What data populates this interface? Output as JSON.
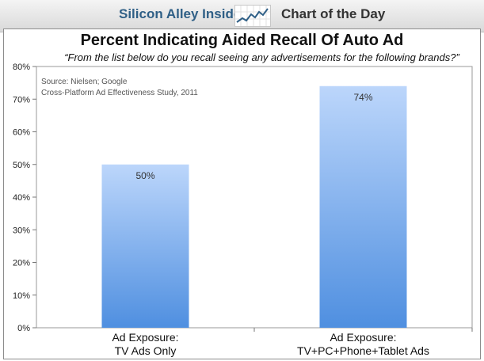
{
  "header": {
    "brand": "Silicon Alley Insider",
    "brand_icon": "trend-line-icon",
    "section": "Chart of the Day"
  },
  "colors": {
    "bar_top": "#bcd6fb",
    "bar_bottom": "#4f8fe0",
    "header_brand": "#2f5f86"
  },
  "chart_data": {
    "type": "bar",
    "title": "Percent Indicating Aided Recall Of Auto Ad",
    "subtitle": "“From the list below do you recall seeing any advertisements  for the following brands?”",
    "source": [
      "Source: Nielsen; Google",
      "Cross-Platform Ad Effectiveness Study, 2011"
    ],
    "categories": [
      [
        "Ad Exposure:",
        "TV Ads Only"
      ],
      [
        "Ad Exposure:",
        "TV+PC+Phone+Tablet Ads"
      ]
    ],
    "values": [
      50,
      74
    ],
    "data_labels": [
      "50%",
      "74%"
    ],
    "ylim": [
      0,
      80
    ],
    "yticks": [
      0,
      10,
      20,
      30,
      40,
      50,
      60,
      70,
      80
    ],
    "ytick_labels": [
      "0%",
      "10%",
      "20%",
      "30%",
      "40%",
      "50%",
      "60%",
      "70%",
      "80%"
    ],
    "grid": false,
    "legend": "none"
  }
}
